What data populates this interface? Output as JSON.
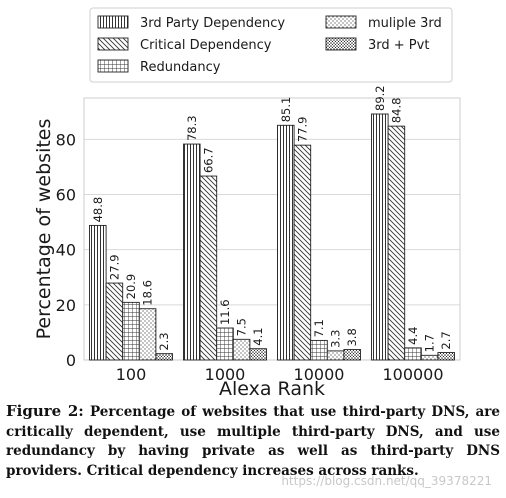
{
  "chart_data": {
    "type": "bar",
    "xlabel": "Alexa Rank",
    "ylabel": "Percentage of websites",
    "ylim": [
      0,
      95
    ],
    "yticks": [
      0,
      20,
      40,
      60,
      80
    ],
    "categories": [
      "100",
      "1000",
      "10000",
      "100000"
    ],
    "legend_position": "top",
    "series": [
      {
        "name": "3rd Party Dependency",
        "pattern": "vertical-lines",
        "values": [
          48.8,
          78.3,
          85.1,
          89.2
        ],
        "labels": [
          "48.8",
          "78.3",
          "85.1",
          "89.2"
        ]
      },
      {
        "name": "Critical Dependency",
        "pattern": "diagonal-lines",
        "values": [
          27.9,
          66.7,
          77.9,
          84.8
        ],
        "labels": [
          "27.9",
          "66.7",
          "77.9",
          "84.8"
        ]
      },
      {
        "name": "Redundancy",
        "pattern": "grid",
        "values": [
          20.9,
          11.6,
          7.1,
          4.4
        ],
        "labels": [
          "20.9",
          "11.6",
          "7.1",
          "4.4"
        ]
      },
      {
        "name": "muliple 3rd",
        "pattern": "dots",
        "values": [
          18.6,
          7.5,
          3.3,
          1.7
        ],
        "labels": [
          "18.6",
          "7.5",
          "3.3",
          "1.7"
        ]
      },
      {
        "name": "3rd + Pvt",
        "pattern": "dense-dots",
        "values": [
          2.3,
          4.1,
          3.8,
          2.7
        ],
        "labels": [
          "2.3",
          "4.1",
          "3.8",
          "2.7"
        ]
      }
    ],
    "grid": "horizontal"
  },
  "caption": {
    "label": "Figure 2:",
    "text": "Percentage of websites that use third-party DNS, are critically dependent, use multiple third-party DNS, and use redundancy by having private as well as third-party DNS providers. Critical dependency increases across ranks."
  },
  "watermark": "https://blog.csdn.net/qq_39378221"
}
